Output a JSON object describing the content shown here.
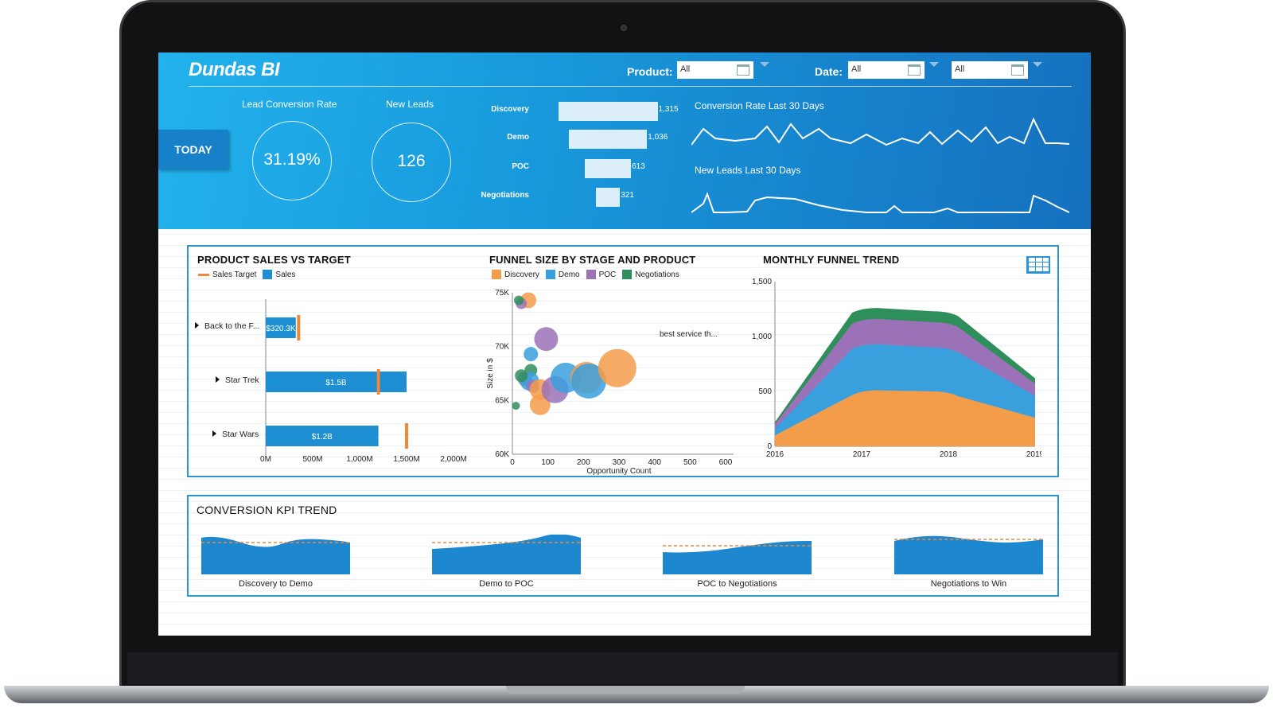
{
  "app": {
    "logo": "Dundas BI"
  },
  "filters": {
    "product_label": "Product:",
    "product_value": "All",
    "date_label": "Date:",
    "date_value": "All",
    "date2_value": "All"
  },
  "header": {
    "today_label": "TODAY",
    "kpis": [
      {
        "title": "Lead Conversion Rate",
        "value": "31.19%"
      },
      {
        "title": "New Leads",
        "value": "126"
      }
    ],
    "funnel": [
      {
        "stage": "Discovery",
        "value": 1315,
        "label": "1,315"
      },
      {
        "stage": "Demo",
        "value": 1036,
        "label": "1,036"
      },
      {
        "stage": "POC",
        "value": 613,
        "label": "613"
      },
      {
        "stage": "Negotiations",
        "value": 321,
        "label": "321"
      }
    ],
    "spark1_title": "Conversion Rate Last 30 Days",
    "spark2_title": "New Leads Last 30 Days"
  },
  "colors": {
    "sales": "#1d8fd2",
    "target": "#f0883a",
    "discovery": "#f39c4a",
    "demo": "#3aa0dd",
    "poc": "#9b72b8",
    "negotiations": "#2f8f5a",
    "frame": "#2b95d6"
  },
  "chart_data": [
    {
      "type": "bar",
      "title": "PRODUCT SALES VS TARGET",
      "legend": [
        "Sales Target",
        "Sales"
      ],
      "categories": [
        "Back to the F...",
        "Star Trek",
        "Star Wars"
      ],
      "series": [
        {
          "name": "Sales",
          "values": [
            320.3,
            1500,
            1200
          ],
          "labels": [
            "$320.3K",
            "$1.5B",
            "$1.2B"
          ]
        },
        {
          "name": "Sales Target",
          "values": [
            350,
            1200,
            1500
          ]
        }
      ],
      "xticks": [
        "0M",
        "500M",
        "1,000M",
        "1,500M",
        "2,000M"
      ],
      "xlim": [
        0,
        2000
      ]
    },
    {
      "type": "scatter",
      "title": "FUNNEL SIZE BY STAGE AND PRODUCT",
      "legend": [
        "Discovery",
        "Demo",
        "POC",
        "Negotiations"
      ],
      "xlabel": "Opportunity Count",
      "ylabel": "Size in $",
      "xticks": [
        "0",
        "100",
        "200",
        "300",
        "400",
        "500",
        "600"
      ],
      "yticks": [
        "60K",
        "65K",
        "70K",
        "75K"
      ],
      "xlim": [
        0,
        600
      ],
      "ylim": [
        60,
        75
      ],
      "annotation": "best service th...",
      "points": [
        {
          "s": "Discovery",
          "x": 45,
          "y": 74.3,
          "r": 10
        },
        {
          "s": "POC",
          "x": 25,
          "y": 74.0,
          "r": 7
        },
        {
          "s": "Negotiations",
          "x": 18,
          "y": 74.3,
          "r": 6
        },
        {
          "s": "POC",
          "x": 95,
          "y": 70.7,
          "r": 15
        },
        {
          "s": "Demo",
          "x": 52,
          "y": 69.3,
          "r": 9
        },
        {
          "s": "Negotiations",
          "x": 52,
          "y": 67.8,
          "r": 8
        },
        {
          "s": "POC",
          "x": 35,
          "y": 67.0,
          "r": 9
        },
        {
          "s": "Demo",
          "x": 48,
          "y": 66.8,
          "r": 12
        },
        {
          "s": "Negotiations",
          "x": 25,
          "y": 67.3,
          "r": 8
        },
        {
          "s": "POC",
          "x": 58,
          "y": 66.3,
          "r": 8
        },
        {
          "s": "Discovery",
          "x": 78,
          "y": 66.0,
          "r": 13
        },
        {
          "s": "Discovery",
          "x": 78,
          "y": 64.6,
          "r": 13
        },
        {
          "s": "Negotiations",
          "x": 10,
          "y": 64.5,
          "r": 5
        },
        {
          "s": "POC",
          "x": 120,
          "y": 66.0,
          "r": 17
        },
        {
          "s": "Demo",
          "x": 150,
          "y": 67.1,
          "r": 19
        },
        {
          "s": "Discovery",
          "x": 208,
          "y": 67.1,
          "r": 20
        },
        {
          "s": "Demo",
          "x": 215,
          "y": 66.8,
          "r": 22
        },
        {
          "s": "Discovery",
          "x": 295,
          "y": 68.0,
          "r": 24
        }
      ]
    },
    {
      "type": "area",
      "title": "MONTHLY FUNNEL TREND",
      "x": [
        "2016",
        "2017",
        "2018",
        "2019"
      ],
      "yticks": [
        "0",
        "500",
        "1,000",
        "1,500"
      ],
      "ylim": [
        0,
        1500
      ],
      "series": [
        {
          "name": "Discovery",
          "values": [
            100,
            510,
            500,
            260
          ]
        },
        {
          "name": "Demo",
          "values": [
            60,
            420,
            400,
            200
          ]
        },
        {
          "name": "POC",
          "values": [
            40,
            230,
            230,
            110
          ]
        },
        {
          "name": "Negotiations",
          "values": [
            20,
            100,
            100,
            50
          ]
        }
      ]
    },
    {
      "type": "area",
      "title": "CONVERSION KPI TREND",
      "panels": [
        "Discovery to Demo",
        "Demo to POC",
        "POC to Negotiations",
        "Negotiations to Win"
      ]
    }
  ]
}
